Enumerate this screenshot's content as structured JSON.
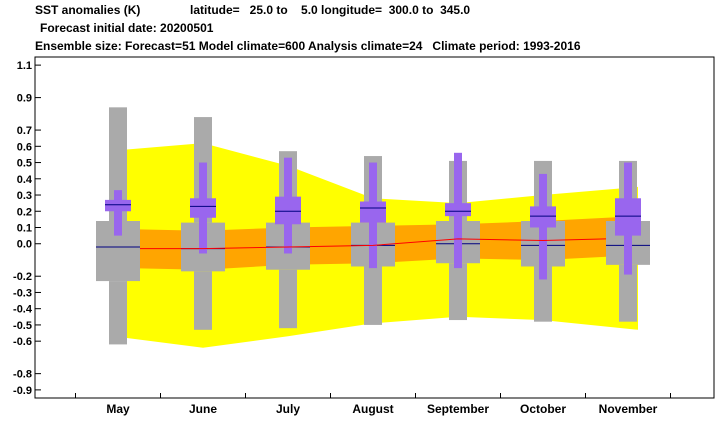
{
  "header": {
    "line1_title": "SST anomalies (K)",
    "line1_coords": "latitude=   25.0 to    5.0 longitude=  300.0 to  345.0",
    "line2": "Forecast initial date: 20200501",
    "line3": "Ensemble size: Forecast=51 Model climate=600 Analysis climate=24   Climate period: 1993-2016"
  },
  "colors": {
    "yellow_band": "#ffff00",
    "orange_band": "#ffa500",
    "model_box": "#aaaaaa",
    "forecast_box": "#9966ee",
    "median_line": "#000080",
    "climate_mean_line": "#ff0000"
  },
  "chart_data": {
    "type": "boxplot",
    "categories": [
      "May",
      "June",
      "July",
      "August",
      "September",
      "October",
      "November"
    ],
    "ylim": [
      -0.95,
      1.15
    ],
    "yticks": [
      1.1,
      0.9,
      0.7,
      0.6,
      0.5,
      0.4,
      0.3,
      0.2,
      0.1,
      0.0,
      -0.2,
      -0.3,
      -0.4,
      -0.5,
      -0.6,
      -0.8,
      -0.9
    ],
    "ytick_labels": [
      "1.1",
      "0.9",
      "0.7",
      "0.6",
      "0.5",
      "0.4",
      "0.3",
      "0.2",
      "0.1",
      "0.0",
      "-0.2",
      "-0.3",
      "-0.4",
      "-0.5",
      "-0.6",
      "-0.8",
      "-0.9"
    ],
    "analysis_climate_outer_band": {
      "lower": [
        -0.58,
        -0.64,
        -0.57,
        -0.49,
        -0.45,
        -0.47,
        -0.53
      ],
      "upper": [
        0.58,
        0.62,
        0.48,
        0.28,
        0.25,
        0.3,
        0.35
      ]
    },
    "analysis_climate_inner_band": {
      "lower": [
        -0.15,
        -0.16,
        -0.13,
        -0.12,
        -0.09,
        -0.1,
        -0.07
      ],
      "upper": [
        0.09,
        0.08,
        0.1,
        0.11,
        0.12,
        0.14,
        0.17
      ]
    },
    "analysis_climate_mean": [
      -0.03,
      -0.03,
      -0.02,
      -0.01,
      0.03,
      0.02,
      0.03
    ],
    "model_climate": [
      {
        "min": -0.62,
        "p25": -0.23,
        "median": -0.02,
        "p75": 0.14,
        "max": 0.84
      },
      {
        "min": -0.53,
        "p25": -0.17,
        "median": -0.03,
        "p75": 0.13,
        "max": 0.78
      },
      {
        "min": -0.52,
        "p25": -0.16,
        "median": -0.02,
        "p75": 0.13,
        "max": 0.57
      },
      {
        "min": -0.5,
        "p25": -0.14,
        "median": -0.01,
        "p75": 0.13,
        "max": 0.54
      },
      {
        "min": -0.47,
        "p25": -0.12,
        "median": 0.0,
        "p75": 0.14,
        "max": 0.51
      },
      {
        "min": -0.48,
        "p25": -0.14,
        "median": -0.01,
        "p75": 0.14,
        "max": 0.51
      },
      {
        "min": -0.48,
        "p25": -0.13,
        "median": -0.01,
        "p75": 0.14,
        "max": 0.51
      }
    ],
    "forecast": [
      {
        "min": 0.05,
        "p25": 0.2,
        "median": 0.24,
        "p75": 0.27,
        "max": 0.33
      },
      {
        "min": -0.06,
        "p25": 0.16,
        "median": 0.23,
        "p75": 0.28,
        "max": 0.5
      },
      {
        "min": -0.06,
        "p25": 0.12,
        "median": 0.2,
        "p75": 0.29,
        "max": 0.53
      },
      {
        "min": -0.15,
        "p25": 0.13,
        "median": 0.22,
        "p75": 0.26,
        "max": 0.5
      },
      {
        "min": -0.15,
        "p25": 0.17,
        "median": 0.2,
        "p75": 0.25,
        "max": 0.56
      },
      {
        "min": -0.22,
        "p25": 0.1,
        "median": 0.17,
        "p75": 0.23,
        "max": 0.43
      },
      {
        "min": -0.19,
        "p25": 0.05,
        "median": 0.17,
        "p75": 0.28,
        "max": 0.5
      }
    ]
  }
}
